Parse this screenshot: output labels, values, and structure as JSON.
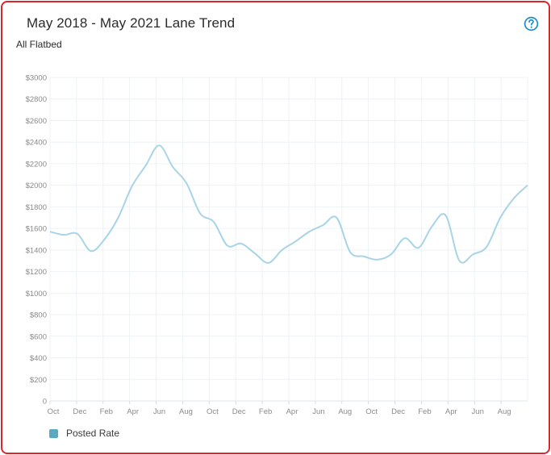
{
  "header": {
    "title": "May 2018 - May 2021 Lane Trend",
    "subtitle": "All Flatbed",
    "help_icon": "question-circle-icon"
  },
  "colors": {
    "border": "#d9262c",
    "line": "#a8d4e6",
    "legend_swatch": "#5aa8c2",
    "help": "#1e8ec9",
    "grid": "#eef2f5"
  },
  "legend": {
    "label": "Posted Rate"
  },
  "chart_data": {
    "type": "line",
    "title": "May 2018 - May 2021 Lane Trend",
    "subtitle": "All Flatbed",
    "xlabel": "",
    "ylabel": "",
    "ylim": [
      0,
      3000
    ],
    "y_ticks": [
      "$3000",
      "$2800",
      "$2600",
      "$2400",
      "$2200",
      "$2000",
      "$1800",
      "$1600",
      "$1400",
      "$1200",
      "$1000",
      "$800",
      "$600",
      "$400",
      "$200",
      "0"
    ],
    "x_ticks": [
      "Oct",
      "Dec",
      "Feb",
      "Apr",
      "Jun",
      "Aug",
      "Oct",
      "Dec",
      "Feb",
      "Apr",
      "Jun",
      "Aug",
      "Oct",
      "Dec",
      "Feb",
      "Apr",
      "Jun",
      "Aug"
    ],
    "grid": true,
    "legend_position": "bottom-left",
    "series": [
      {
        "name": "Posted Rate",
        "values": [
          1570,
          1540,
          1550,
          1390,
          1500,
          1700,
          1990,
          2180,
          2370,
          2170,
          2020,
          1740,
          1660,
          1440,
          1460,
          1370,
          1280,
          1400,
          1480,
          1570,
          1630,
          1700,
          1380,
          1340,
          1310,
          1360,
          1510,
          1420,
          1620,
          1720,
          1300,
          1360,
          1430,
          1700,
          1880,
          2000
        ]
      }
    ]
  }
}
